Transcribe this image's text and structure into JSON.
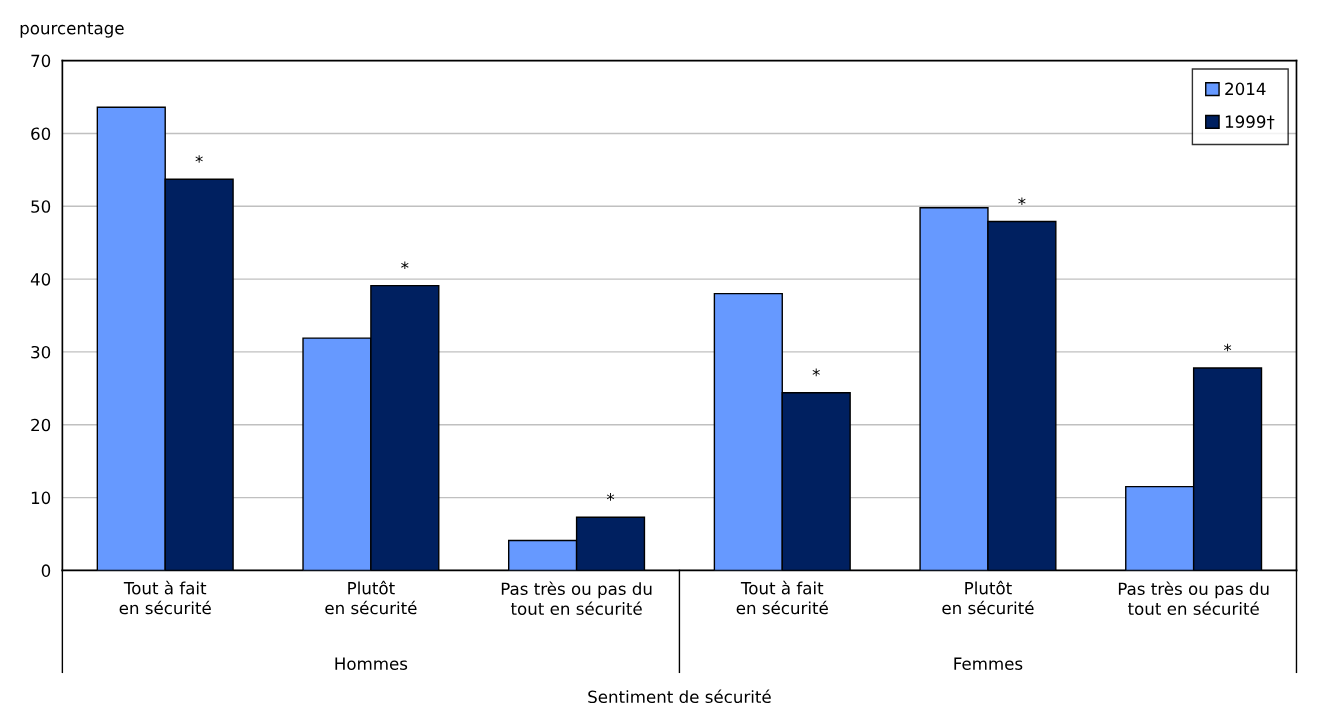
{
  "chart_data": {
    "type": "bar",
    "ylabel": "pourcentage",
    "xlabel": "Sentiment de sécurité",
    "categories": [
      "Tout à fait\nen sécurité",
      "Plutôt\nen sécurité",
      "Pas très ou pas du\ntout en sécurité",
      "Tout à fait\nen sécurité",
      "Plutôt\nen sécurité",
      "Pas très ou pas du\ntout en sécurité"
    ],
    "series": [
      {
        "name": "2014",
        "color": "#6699ff",
        "values": [
          63.6,
          31.9,
          4.1,
          38.0,
          49.8,
          11.5
        ]
      },
      {
        "name": "1999†",
        "color": "#002060",
        "values": [
          53.7,
          39.1,
          7.3,
          24.4,
          47.9,
          27.8
        ],
        "value_labels": [
          "*",
          "*",
          "*",
          "*",
          "*",
          "*"
        ]
      }
    ],
    "annotations": [
      "Hommes",
      "Femmes"
    ],
    "ylim": [
      0,
      70
    ],
    "yticks": [
      0,
      10,
      20,
      30,
      40,
      50,
      60,
      70
    ],
    "grid": "y",
    "legend": "top right"
  }
}
